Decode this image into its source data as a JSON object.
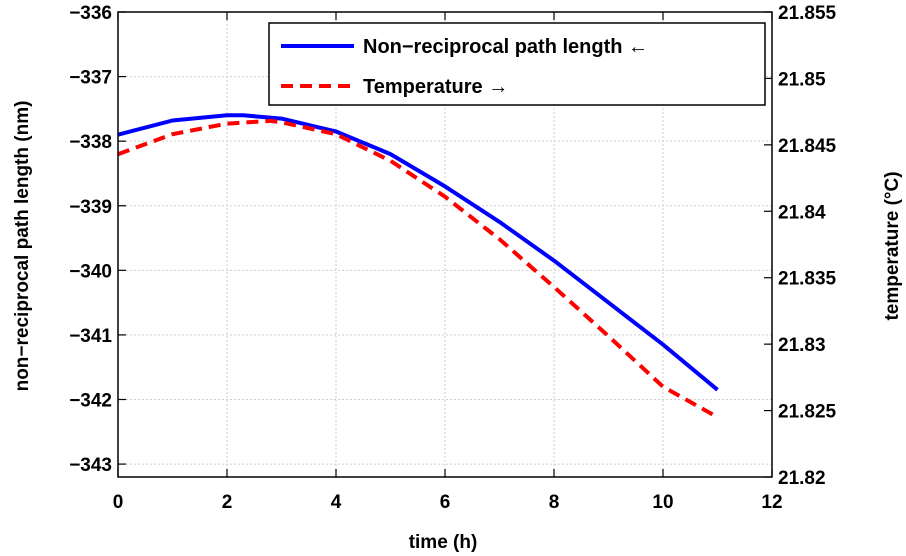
{
  "chart_data": {
    "type": "line",
    "xlabel": "time (h)",
    "ylabel_left": "non−reciprocal path length (nm)",
    "ylabel_right": "temperature (°C)",
    "xlim": [
      0,
      12
    ],
    "ylim_left": [
      -343.2,
      -336
    ],
    "ylim_right": [
      21.82,
      21.855
    ],
    "x_ticks": [
      "0",
      "2",
      "4",
      "6",
      "8",
      "10",
      "12"
    ],
    "y_left_ticks": [
      "−336",
      "−337",
      "−338",
      "−339",
      "−340",
      "−341",
      "−342",
      "−343"
    ],
    "y_right_ticks": [
      "21.855",
      "21.85",
      "21.845",
      "21.84",
      "21.835",
      "21.83",
      "21.825",
      "21.82"
    ],
    "grid": true,
    "legend_position": "top-right",
    "series": [
      {
        "name": "Non−reciprocal path length ←",
        "axis": "left",
        "color": "#0000ff",
        "style": "solid",
        "x": [
          0,
          1,
          2,
          2.3,
          3,
          4,
          5,
          6,
          7,
          8,
          9,
          10,
          11
        ],
        "y": [
          -337.9,
          -337.68,
          -337.6,
          -337.6,
          -337.65,
          -337.85,
          -338.2,
          -338.7,
          -339.25,
          -339.85,
          -340.5,
          -341.15,
          -341.85
        ]
      },
      {
        "name": "Temperature →",
        "axis": "right",
        "color": "#ff0000",
        "style": "dashed",
        "x": [
          0,
          1,
          2,
          2.8,
          3,
          4,
          5,
          6,
          7,
          8,
          9,
          10,
          11
        ],
        "y": [
          21.8443,
          21.8458,
          21.8466,
          21.8468,
          21.8467,
          21.8458,
          21.8438,
          21.8411,
          21.8379,
          21.8343,
          21.8306,
          21.8268,
          21.8245
        ]
      }
    ]
  }
}
